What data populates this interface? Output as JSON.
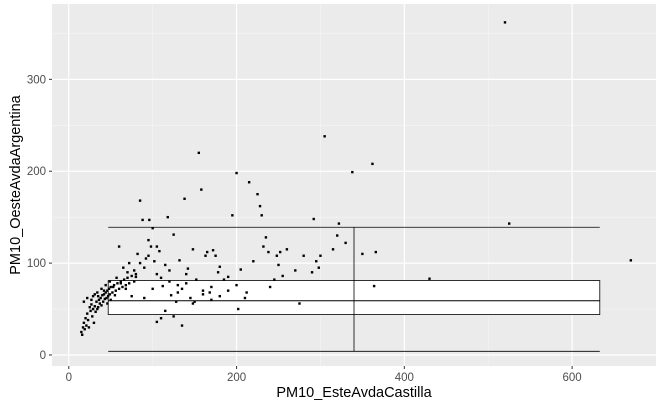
{
  "chart_data": {
    "type": "scatter",
    "title": "",
    "xlabel": "PM10_EsteAvdaCastilla",
    "ylabel": "PM10_OesteAvdaArgentina",
    "xlim": [
      -20,
      700
    ],
    "ylim": [
      -12,
      382
    ],
    "x_ticks": [
      0,
      200,
      400,
      600
    ],
    "y_ticks": [
      0,
      100,
      200,
      300
    ],
    "x_tick_labels": [
      "0",
      "200",
      "400",
      "600"
    ],
    "y_tick_labels": [
      "0",
      "100",
      "200",
      "300"
    ],
    "grid": true,
    "legend": "none",
    "colors": {
      "panel": "#ebebeb",
      "grid_major": "#ffffff",
      "grid_minor": "#f5f5f5",
      "points": "#000000",
      "box_outline": "#000000"
    },
    "overlay": {
      "type": "boxplot",
      "x_whiskers": [
        47,
        633
      ],
      "x_hinges": [
        47,
        633
      ],
      "y_whisker_low": 4,
      "y_whisker_high": 139,
      "y_q1": 44,
      "y_median": 59,
      "y_q3": 81,
      "x_median": 340,
      "x_range_low": 4,
      "x_range_high": 139
    },
    "points": [
      [
        15,
        25
      ],
      [
        16,
        22
      ],
      [
        17,
        30
      ],
      [
        18,
        35
      ],
      [
        19,
        28
      ],
      [
        20,
        40
      ],
      [
        21,
        32
      ],
      [
        22,
        45
      ],
      [
        23,
        38
      ],
      [
        24,
        30
      ],
      [
        25,
        52
      ],
      [
        26,
        48
      ],
      [
        27,
        55
      ],
      [
        28,
        42
      ],
      [
        29,
        50
      ],
      [
        30,
        35
      ],
      [
        31,
        53
      ],
      [
        32,
        47
      ],
      [
        33,
        58
      ],
      [
        34,
        50
      ],
      [
        35,
        52
      ],
      [
        36,
        60
      ],
      [
        37,
        56
      ],
      [
        38,
        62
      ],
      [
        39,
        54
      ],
      [
        40,
        65
      ],
      [
        41,
        58
      ],
      [
        42,
        66
      ],
      [
        43,
        61
      ],
      [
        44,
        68
      ],
      [
        45,
        62
      ],
      [
        46,
        70
      ],
      [
        47,
        64
      ],
      [
        48,
        72
      ],
      [
        49,
        66
      ],
      [
        50,
        74
      ],
      [
        52,
        68
      ],
      [
        54,
        76
      ],
      [
        56,
        70
      ],
      [
        58,
        78
      ],
      [
        60,
        72
      ],
      [
        62,
        80
      ],
      [
        64,
        74
      ],
      [
        66,
        82
      ],
      [
        68,
        76
      ],
      [
        70,
        84
      ],
      [
        72,
        78
      ],
      [
        75,
        86
      ],
      [
        78,
        80
      ],
      [
        80,
        88
      ],
      [
        18,
        58
      ],
      [
        22,
        62
      ],
      [
        27,
        60
      ],
      [
        31,
        66
      ],
      [
        35,
        64
      ],
      [
        42,
        70
      ],
      [
        46,
        56
      ],
      [
        50,
        60
      ],
      [
        55,
        65
      ],
      [
        60,
        118
      ],
      [
        65,
        95
      ],
      [
        70,
        90
      ],
      [
        72,
        100
      ],
      [
        78,
        92
      ],
      [
        80,
        85
      ],
      [
        82,
        110
      ],
      [
        85,
        168
      ],
      [
        88,
        147
      ],
      [
        90,
        95
      ],
      [
        92,
        105
      ],
      [
        95,
        125
      ],
      [
        96,
        147
      ],
      [
        98,
        118
      ],
      [
        100,
        138
      ],
      [
        102,
        102
      ],
      [
        105,
        88
      ],
      [
        108,
        113
      ],
      [
        110,
        40
      ],
      [
        112,
        75
      ],
      [
        115,
        98
      ],
      [
        118,
        150
      ],
      [
        120,
        80
      ],
      [
        122,
        65
      ],
      [
        125,
        131
      ],
      [
        128,
        58
      ],
      [
        130,
        68
      ],
      [
        132,
        103
      ],
      [
        135,
        72
      ],
      [
        138,
        170
      ],
      [
        140,
        78
      ],
      [
        142,
        94
      ],
      [
        145,
        62
      ],
      [
        148,
        115
      ],
      [
        150,
        58
      ],
      [
        152,
        82
      ],
      [
        155,
        220
      ],
      [
        158,
        180
      ],
      [
        160,
        70
      ],
      [
        163,
        108
      ],
      [
        165,
        112
      ],
      [
        168,
        68
      ],
      [
        170,
        74
      ],
      [
        172,
        114
      ],
      [
        175,
        108
      ],
      [
        178,
        90
      ],
      [
        180,
        96
      ],
      [
        185,
        82
      ],
      [
        190,
        85
      ],
      [
        195,
        152
      ],
      [
        200,
        198
      ],
      [
        202,
        50
      ],
      [
        205,
        93
      ],
      [
        210,
        62
      ],
      [
        212,
        68
      ],
      [
        215,
        188
      ],
      [
        220,
        102
      ],
      [
        225,
        175
      ],
      [
        228,
        162
      ],
      [
        230,
        152
      ],
      [
        232,
        118
      ],
      [
        235,
        128
      ],
      [
        238,
        112
      ],
      [
        240,
        74
      ],
      [
        245,
        82
      ],
      [
        248,
        108
      ],
      [
        250,
        98
      ],
      [
        252,
        112
      ],
      [
        255,
        86
      ],
      [
        260,
        115
      ],
      [
        270,
        92
      ],
      [
        275,
        56
      ],
      [
        280,
        108
      ],
      [
        290,
        90
      ],
      [
        292,
        148
      ],
      [
        295,
        102
      ],
      [
        298,
        95
      ],
      [
        300,
        108
      ],
      [
        305,
        238
      ],
      [
        315,
        115
      ],
      [
        320,
        130
      ],
      [
        322,
        143
      ],
      [
        330,
        122
      ],
      [
        338,
        199
      ],
      [
        350,
        110
      ],
      [
        362,
        208
      ],
      [
        364,
        75
      ],
      [
        366,
        112
      ],
      [
        430,
        83
      ],
      [
        520,
        362
      ],
      [
        525,
        143
      ],
      [
        670,
        103
      ],
      [
        105,
        36
      ],
      [
        115,
        48
      ],
      [
        125,
        42
      ],
      [
        135,
        32
      ],
      [
        90,
        62
      ],
      [
        100,
        72
      ],
      [
        110,
        84
      ],
      [
        120,
        92
      ],
      [
        130,
        76
      ],
      [
        140,
        88
      ],
      [
        148,
        56
      ],
      [
        160,
        66
      ],
      [
        170,
        60
      ],
      [
        180,
        64
      ],
      [
        190,
        70
      ],
      [
        200,
        76
      ],
      [
        85,
        100
      ],
      [
        95,
        108
      ],
      [
        105,
        118
      ],
      [
        75,
        64
      ],
      [
        68,
        72
      ],
      [
        62,
        78
      ],
      [
        57,
        84
      ],
      [
        53,
        74
      ],
      [
        49,
        80
      ],
      [
        44,
        76
      ],
      [
        39,
        72
      ],
      [
        34,
        68
      ],
      [
        29,
        64
      ]
    ]
  }
}
